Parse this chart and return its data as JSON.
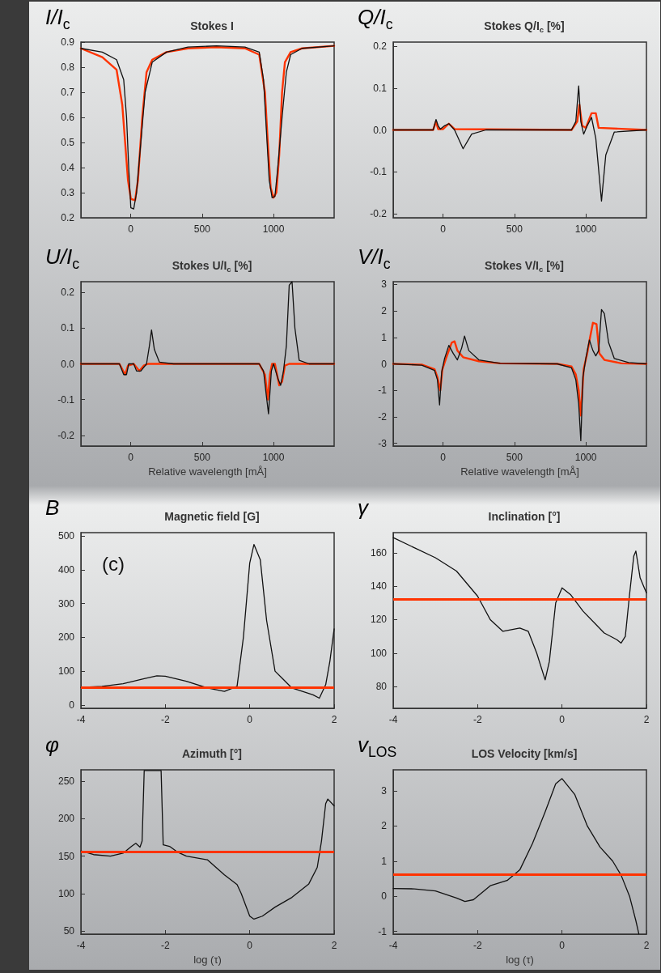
{
  "chart_data": [
    {
      "type": "line",
      "title": "Stokes I",
      "ylabel": "I/I$_{c}$",
      "xlim": [
        -350,
        1425
      ],
      "xticks": [
        0,
        500,
        1000
      ],
      "ylim": [
        0.2,
        0.9
      ],
      "yticks": [
        0.2,
        0.3,
        0.4,
        0.5,
        0.6,
        0.7,
        0.8,
        0.9
      ],
      "series": [
        {
          "color": "#111111",
          "x": [
            -350,
            -200,
            -100,
            -50,
            -30,
            -15,
            0,
            20,
            40,
            70,
            100,
            150,
            250,
            400,
            600,
            800,
            900,
            930,
            950,
            970,
            990,
            1010,
            1030,
            1060,
            1090,
            1120,
            1200,
            1425
          ],
          "values": [
            0.875,
            0.86,
            0.83,
            0.75,
            0.6,
            0.4,
            0.24,
            0.235,
            0.3,
            0.5,
            0.7,
            0.82,
            0.86,
            0.88,
            0.885,
            0.88,
            0.86,
            0.75,
            0.55,
            0.35,
            0.28,
            0.285,
            0.4,
            0.6,
            0.78,
            0.85,
            0.875,
            0.885
          ]
        },
        {
          "color": "#ff3300",
          "x": [
            -350,
            -200,
            -100,
            -60,
            -40,
            -20,
            0,
            30,
            50,
            80,
            110,
            150,
            250,
            400,
            600,
            800,
            900,
            940,
            960,
            980,
            1000,
            1020,
            1040,
            1060,
            1080,
            1120,
            1200,
            1425
          ],
          "values": [
            0.875,
            0.84,
            0.79,
            0.65,
            0.5,
            0.35,
            0.275,
            0.27,
            0.35,
            0.6,
            0.78,
            0.83,
            0.86,
            0.875,
            0.88,
            0.875,
            0.85,
            0.7,
            0.5,
            0.32,
            0.28,
            0.3,
            0.45,
            0.7,
            0.82,
            0.86,
            0.875,
            0.885
          ]
        }
      ]
    },
    {
      "type": "line",
      "title": "Stokes Q/I$_{c}$ [%]",
      "ylabel": "Q/I$_{c}$",
      "xlim": [
        -350,
        1425
      ],
      "xticks": [
        0,
        500,
        1000
      ],
      "ylim": [
        -0.21,
        0.21
      ],
      "yticks": [
        {
          "value": -0.2,
          "label": "-0.2"
        },
        {
          "value": -0.1,
          "label": "-0.1"
        },
        {
          "value": 0,
          "label": "0.0"
        },
        {
          "value": 0.1,
          "label": "0.1"
        },
        {
          "value": 0.2,
          "label": "0.2"
        }
      ],
      "series": [
        {
          "color": "#111111",
          "x": [
            -350,
            -70,
            -50,
            -35,
            -20,
            10,
            40,
            80,
            140,
            200,
            300,
            900,
            930,
            950,
            965,
            985,
            1010,
            1040,
            1070,
            1110,
            1140,
            1200,
            1425
          ],
          "values": [
            0,
            0,
            0.025,
            0.01,
            0.002,
            0.01,
            0.015,
            0,
            -0.045,
            -0.01,
            0,
            0,
            0.02,
            0.105,
            0.02,
            -0.01,
            0.01,
            0.03,
            -0.02,
            -0.17,
            -0.06,
            -0.005,
            0
          ]
        },
        {
          "color": "#ff3300",
          "x": [
            -350,
            -70,
            -50,
            -35,
            0,
            40,
            80,
            900,
            940,
            955,
            975,
            1000,
            1040,
            1070,
            1090,
            1425
          ],
          "values": [
            0,
            0,
            0.02,
            0.002,
            0.002,
            0.015,
            0.002,
            0,
            0.02,
            0.06,
            0.01,
            0.005,
            0.04,
            0.04,
            0.005,
            0
          ]
        }
      ]
    },
    {
      "type": "line",
      "title": "Stokes U/I$_{c}$ [%]",
      "ylabel": "U/I$_{c}$",
      "xlabel": "Relative wavelength [mÅ]",
      "xlim": [
        -350,
        1425
      ],
      "xticks": [
        0,
        500,
        1000
      ],
      "ylim": [
        -0.23,
        0.23
      ],
      "yticks": [
        {
          "value": -0.2,
          "label": "-0.2"
        },
        {
          "value": -0.1,
          "label": "-0.1"
        },
        {
          "value": 0,
          "label": "0.0"
        },
        {
          "value": 0.1,
          "label": "0.1"
        },
        {
          "value": 0.2,
          "label": "0.2"
        }
      ],
      "series": [
        {
          "color": "#111111",
          "x": [
            -350,
            -80,
            -50,
            -30,
            -15,
            20,
            40,
            70,
            110,
            130,
            145,
            165,
            200,
            300,
            900,
            930,
            950,
            965,
            985,
            1000,
            1030,
            1050,
            1070,
            1090,
            1110,
            1130,
            1150,
            1180,
            1250,
            1425
          ],
          "values": [
            0,
            0,
            -0.03,
            -0.03,
            0,
            0,
            -0.02,
            -0.02,
            0,
            0.05,
            0.095,
            0.04,
            0.005,
            0,
            0,
            -0.02,
            -0.09,
            -0.14,
            -0.02,
            0,
            -0.04,
            -0.06,
            -0.02,
            0.05,
            0.22,
            0.23,
            0.1,
            0.01,
            0,
            0
          ]
        },
        {
          "color": "#ff3300",
          "x": [
            -350,
            -80,
            -40,
            -20,
            20,
            60,
            90,
            120,
            900,
            940,
            960,
            975,
            990,
            1010,
            1040,
            1060,
            1080,
            1110,
            1425
          ],
          "values": [
            0,
            0,
            -0.03,
            -0.005,
            0,
            -0.02,
            -0.005,
            0,
            0,
            -0.03,
            -0.1,
            -0.03,
            0,
            0,
            -0.06,
            -0.05,
            -0.005,
            0,
            0
          ]
        }
      ]
    },
    {
      "type": "line",
      "title": "Stokes V/I$_{c}$ [%]",
      "ylabel": "V/I$_{c}$",
      "xlabel": "Relative wavelength [mÅ]",
      "xlim": [
        -350,
        1425
      ],
      "xticks": [
        0,
        500,
        1000
      ],
      "ylim": [
        -3.1,
        3.1
      ],
      "yticks": [
        -3,
        -2,
        -1,
        0,
        1,
        2,
        3
      ],
      "series": [
        {
          "color": "#111111",
          "x": [
            -350,
            -150,
            -60,
            -40,
            -25,
            -10,
            10,
            40,
            70,
            100,
            130,
            150,
            180,
            250,
            400,
            800,
            900,
            930,
            950,
            965,
            980,
            1000,
            1025,
            1050,
            1070,
            1090,
            1110,
            1130,
            1160,
            1200,
            1300,
            1425
          ],
          "values": [
            0,
            -0.05,
            -0.25,
            -0.6,
            -1.55,
            -0.3,
            0.2,
            0.7,
            0.4,
            0.15,
            0.6,
            1.05,
            0.5,
            0.15,
            0.02,
            0,
            -0.15,
            -0.6,
            -1.5,
            -2.9,
            -0.5,
            0.2,
            0.9,
            0.5,
            0.3,
            0.5,
            2.05,
            1.9,
            0.8,
            0.2,
            0.05,
            0
          ]
        },
        {
          "color": "#ff3300",
          "x": [
            -350,
            -150,
            -60,
            -40,
            -20,
            -5,
            20,
            40,
            60,
            80,
            100,
            140,
            250,
            400,
            800,
            900,
            930,
            950,
            965,
            985,
            1010,
            1030,
            1050,
            1075,
            1095,
            1130,
            1250,
            1425
          ],
          "values": [
            0,
            -0.03,
            -0.2,
            -0.5,
            -1.0,
            -0.2,
            0.2,
            0.5,
            0.8,
            0.85,
            0.5,
            0.25,
            0.1,
            0.02,
            0,
            -0.1,
            -0.4,
            -1.0,
            -1.95,
            -0.2,
            0.4,
            1.0,
            1.55,
            1.5,
            0.4,
            0.15,
            0.02,
            0
          ]
        }
      ]
    },
    {
      "type": "line",
      "title": "Magnetic field [G]",
      "ylabel": "B",
      "annotations": [
        "(c)"
      ],
      "xlim": [
        -4,
        2
      ],
      "xticks": [
        -4,
        -2,
        0,
        2
      ],
      "ylim": [
        -10,
        510
      ],
      "yticks": [
        0,
        100,
        200,
        300,
        400,
        500
      ],
      "ref_lines": [
        {
          "axis": "y",
          "value": 51,
          "color": "#ff3300"
        }
      ],
      "series": [
        {
          "color": "#111111",
          "x": [
            -4,
            -3.5,
            -3,
            -2.5,
            -2.2,
            -2,
            -1.5,
            -1,
            -0.6,
            -0.3,
            -0.15,
            0,
            0.1,
            0.25,
            0.4,
            0.6,
            0.8,
            1,
            1.5,
            1.65,
            1.8,
            1.9,
            2
          ],
          "values": [
            52,
            55,
            63,
            78,
            86,
            85,
            70,
            50,
            40,
            55,
            200,
            420,
            475,
            430,
            250,
            100,
            75,
            50,
            30,
            20,
            60,
            130,
            225
          ]
        }
      ]
    },
    {
      "type": "line",
      "title": "Inclination [°]",
      "ylabel": "γ",
      "xlim": [
        -4,
        2
      ],
      "xticks": [
        -4,
        -2,
        0,
        2
      ],
      "ylim": [
        67,
        172
      ],
      "yticks": [
        80,
        100,
        120,
        140,
        160
      ],
      "ref_lines": [
        {
          "axis": "y",
          "value": 132,
          "color": "#ff3300"
        }
      ],
      "series": [
        {
          "color": "#111111",
          "x": [
            -4,
            -3.5,
            -3,
            -2.5,
            -2,
            -1.7,
            -1.4,
            -1,
            -0.8,
            -0.6,
            -0.4,
            -0.3,
            -0.15,
            0,
            0.2,
            0.5,
            1,
            1.3,
            1.4,
            1.5,
            1.6,
            1.7,
            1.75,
            1.85,
            1.95,
            2
          ],
          "values": [
            169,
            163,
            157,
            149,
            134,
            120,
            113,
            115,
            113,
            100,
            84,
            95,
            130,
            139,
            135,
            125,
            112,
            108,
            106,
            110,
            135,
            158,
            161,
            145,
            139,
            136
          ]
        }
      ]
    },
    {
      "type": "line",
      "title": "Azimuth [°]",
      "ylabel": "φ",
      "xlabel": "log (τ)",
      "xlim": [
        -4,
        2
      ],
      "xticks": [
        -4,
        -2,
        0,
        2
      ],
      "ylim": [
        46,
        265
      ],
      "yticks": [
        50,
        100,
        150,
        200,
        250
      ],
      "ref_lines": [
        {
          "axis": "y",
          "value": 156,
          "color": "#ff3300"
        }
      ],
      "series": [
        {
          "color": "#111111",
          "x": [
            -4,
            -3.7,
            -3.3,
            -3,
            -2.8,
            -2.7,
            -2.6,
            -2.55,
            -2.5,
            -2.1,
            -2.05,
            -1.9,
            -1.7,
            -1.5,
            -1,
            -0.6,
            -0.3,
            -0.2,
            0,
            0.1,
            0.3,
            0.6,
            1,
            1.4,
            1.6,
            1.7,
            1.8,
            1.85,
            2
          ],
          "values": [
            157,
            152,
            150,
            154,
            163,
            167,
            162,
            170,
            264,
            264,
            165,
            163,
            155,
            150,
            145,
            125,
            112,
            100,
            70,
            66,
            70,
            82,
            95,
            113,
            135,
            170,
            220,
            226,
            217
          ]
        }
      ]
    },
    {
      "type": "line",
      "title": "LOS Velocity [km/s]",
      "ylabel": "v$_{LOS}$",
      "xlabel": "log (τ)",
      "xlim": [
        -4,
        2
      ],
      "xticks": [
        -4,
        -2,
        0,
        2
      ],
      "ylim": [
        -1.08,
        3.6
      ],
      "yticks": [
        -1,
        0,
        1,
        2,
        3
      ],
      "ref_lines": [
        {
          "axis": "y",
          "value": 0.61,
          "color": "#ff3300"
        }
      ],
      "series": [
        {
          "color": "#111111",
          "x": [
            -4,
            -3.5,
            -3,
            -2.5,
            -2.3,
            -2.1,
            -1.7,
            -1.3,
            -1,
            -0.7,
            -0.4,
            -0.15,
            0,
            0.3,
            0.6,
            0.9,
            1.2,
            1.4,
            1.6,
            1.75,
            1.82
          ],
          "values": [
            0.22,
            0.21,
            0.15,
            -0.05,
            -0.15,
            -0.1,
            0.3,
            0.45,
            0.75,
            1.5,
            2.4,
            3.2,
            3.35,
            2.9,
            2,
            1.4,
            1.0,
            0.6,
            0,
            -0.7,
            -1.07
          ]
        }
      ]
    }
  ]
}
